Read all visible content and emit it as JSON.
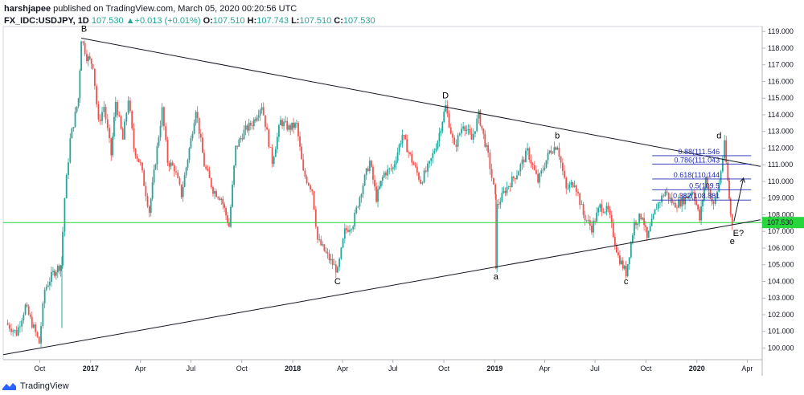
{
  "header": {
    "user": "harshjapee",
    "published": "published on TradingView.com, March 05, 2020 00:20:56 UTC",
    "symbol": "FX_IDC:USDJPY, 1D",
    "price": "107.530",
    "change": "+0.013 (+0.01%)",
    "o_label": "O:",
    "o_value": "107.510",
    "h_label": "H:",
    "h_value": "107.743",
    "l_label": "L:",
    "l_value": "107.510",
    "c_label": "C:",
    "c_value": "107.530"
  },
  "footer": {
    "brand": "TradingView",
    "logo_icon": "tradingview-logo-icon"
  },
  "colors": {
    "up": "#26a69a",
    "down": "#ef5350",
    "trendline": "#131722",
    "fib": "#1f2bb5",
    "price_line": "#26d63c",
    "last_price_bg": "#26d63c"
  },
  "chart_data": {
    "type": "candlestick",
    "ylim": [
      99.3,
      119.3
    ],
    "y_ticks": [
      "100.000",
      "101.000",
      "102.000",
      "103.000",
      "104.000",
      "105.000",
      "106.000",
      "107.000",
      "108.000",
      "109.000",
      "110.000",
      "111.000",
      "112.000",
      "113.000",
      "114.000",
      "115.000",
      "116.000",
      "117.000",
      "118.000",
      "119.000"
    ],
    "x_ticks": [
      {
        "label": "Oct",
        "date": "2016-10-01",
        "bold": false
      },
      {
        "label": "2017",
        "date": "2017-01-01",
        "bold": true
      },
      {
        "label": "Apr",
        "date": "2017-04-01",
        "bold": false
      },
      {
        "label": "Jul",
        "date": "2017-07-01",
        "bold": false
      },
      {
        "label": "Oct",
        "date": "2017-10-01",
        "bold": false
      },
      {
        "label": "2018",
        "date": "2018-01-01",
        "bold": true
      },
      {
        "label": "Apr",
        "date": "2018-04-01",
        "bold": false
      },
      {
        "label": "Jul",
        "date": "2018-07-01",
        "bold": false
      },
      {
        "label": "Oct",
        "date": "2018-10-01",
        "bold": false
      },
      {
        "label": "2019",
        "date": "2019-01-01",
        "bold": true
      },
      {
        "label": "Apr",
        "date": "2019-04-01",
        "bold": false
      },
      {
        "label": "Jul",
        "date": "2019-07-01",
        "bold": false
      },
      {
        "label": "Oct",
        "date": "2019-10-01",
        "bold": false
      },
      {
        "label": "2020",
        "date": "2020-01-01",
        "bold": true
      },
      {
        "label": "Apr",
        "date": "2020-04-01",
        "bold": false
      }
    ],
    "price_path": [
      [
        "2016-08-01",
        101.5
      ],
      [
        "2016-08-20",
        100.9
      ],
      [
        "2016-09-05",
        102.5
      ],
      [
        "2016-09-20",
        101.2
      ],
      [
        "2016-09-30",
        100.3
      ],
      [
        "2016-10-10",
        103.5
      ],
      [
        "2016-10-25",
        104.5
      ],
      [
        "2016-11-08",
        105.0
      ],
      [
        "2016-11-15",
        109.0
      ],
      [
        "2016-11-25",
        112.5
      ],
      [
        "2016-12-10",
        115.0
      ],
      [
        "2016-12-15",
        118.6
      ],
      [
        "2016-12-25",
        117.5
      ],
      [
        "2017-01-05",
        117.0
      ],
      [
        "2017-01-15",
        113.5
      ],
      [
        "2017-01-25",
        114.5
      ],
      [
        "2017-02-07",
        111.6
      ],
      [
        "2017-02-15",
        114.8
      ],
      [
        "2017-02-28",
        112.5
      ],
      [
        "2017-03-10",
        115.0
      ],
      [
        "2017-03-20",
        112.0
      ],
      [
        "2017-04-01",
        111.0
      ],
      [
        "2017-04-17",
        108.2
      ],
      [
        "2017-05-01",
        112.0
      ],
      [
        "2017-05-10",
        114.3
      ],
      [
        "2017-05-20",
        111.2
      ],
      [
        "2017-06-01",
        110.8
      ],
      [
        "2017-06-14",
        109.2
      ],
      [
        "2017-07-01",
        112.5
      ],
      [
        "2017-07-10",
        114.4
      ],
      [
        "2017-07-25",
        111.0
      ],
      [
        "2017-08-10",
        109.5
      ],
      [
        "2017-08-25",
        109.0
      ],
      [
        "2017-09-08",
        107.3
      ],
      [
        "2017-09-20",
        112.0
      ],
      [
        "2017-10-05",
        113.0
      ],
      [
        "2017-10-20",
        113.5
      ],
      [
        "2017-11-06",
        114.6
      ],
      [
        "2017-11-25",
        111.2
      ],
      [
        "2017-12-10",
        113.6
      ],
      [
        "2017-12-25",
        113.2
      ],
      [
        "2018-01-08",
        113.4
      ],
      [
        "2018-01-20",
        110.5
      ],
      [
        "2018-02-05",
        109.5
      ],
      [
        "2018-02-15",
        106.5
      ],
      [
        "2018-03-05",
        105.5
      ],
      [
        "2018-03-23",
        104.6
      ],
      [
        "2018-04-05",
        107.0
      ],
      [
        "2018-04-20",
        107.5
      ],
      [
        "2018-05-05",
        109.5
      ],
      [
        "2018-05-20",
        111.2
      ],
      [
        "2018-06-01",
        109.0
      ],
      [
        "2018-06-15",
        110.5
      ],
      [
        "2018-07-01",
        110.8
      ],
      [
        "2018-07-18",
        112.8
      ],
      [
        "2018-08-01",
        111.5
      ],
      [
        "2018-08-20",
        110.0
      ],
      [
        "2018-09-05",
        111.0
      ],
      [
        "2018-09-20",
        112.5
      ],
      [
        "2018-10-04",
        114.5
      ],
      [
        "2018-10-20",
        112.0
      ],
      [
        "2018-11-05",
        113.5
      ],
      [
        "2018-11-20",
        112.5
      ],
      [
        "2018-12-03",
        114.0
      ],
      [
        "2018-12-20",
        111.5
      ],
      [
        "2019-01-02",
        109.0
      ],
      [
        "2019-01-03",
        105.0
      ],
      [
        "2019-01-05",
        108.5
      ],
      [
        "2019-01-20",
        109.5
      ],
      [
        "2019-02-10",
        110.5
      ],
      [
        "2019-03-01",
        111.8
      ],
      [
        "2019-03-20",
        110.0
      ],
      [
        "2019-04-10",
        111.8
      ],
      [
        "2019-04-24",
        112.2
      ],
      [
        "2019-05-10",
        109.5
      ],
      [
        "2019-05-25",
        110.0
      ],
      [
        "2019-06-10",
        108.0
      ],
      [
        "2019-06-25",
        107.2
      ],
      [
        "2019-07-10",
        108.5
      ],
      [
        "2019-07-25",
        108.2
      ],
      [
        "2019-08-12",
        105.5
      ],
      [
        "2019-08-26",
        104.5
      ],
      [
        "2019-09-10",
        107.5
      ],
      [
        "2019-09-25",
        108.0
      ],
      [
        "2019-10-03",
        106.5
      ],
      [
        "2019-10-20",
        108.5
      ],
      [
        "2019-11-05",
        109.4
      ],
      [
        "2019-11-20",
        108.6
      ],
      [
        "2019-12-05",
        108.8
      ],
      [
        "2019-12-25",
        109.5
      ],
      [
        "2020-01-06",
        107.7
      ],
      [
        "2020-01-17",
        110.2
      ],
      [
        "2020-01-31",
        108.5
      ],
      [
        "2020-02-10",
        109.9
      ],
      [
        "2020-02-20",
        112.2
      ],
      [
        "2020-02-26",
        110.0
      ],
      [
        "2020-03-02",
        108.0
      ],
      [
        "2020-03-05",
        107.5
      ]
    ],
    "last_price": {
      "value": 107.53,
      "label": "107.530"
    },
    "trendlines": [
      {
        "from": [
          "2016-12-15",
          118.6
        ],
        "to": [
          "2020-04-25",
          110.9
        ]
      },
      {
        "from": [
          "2016-07-27",
          99.6
        ],
        "to": [
          "2020-04-25",
          107.7
        ]
      }
    ],
    "arrow": {
      "from": [
        "2020-03-08",
        107.6
      ],
      "to": [
        "2020-03-25",
        110.2
      ]
    },
    "fib_levels": [
      {
        "label": "0.88(111.546",
        "value": 111.546
      },
      {
        "label": "0.786(111.043",
        "value": 111.043
      },
      {
        "label": "0.618(110.144",
        "value": 110.144
      },
      {
        "label": "0.5(109.5",
        "value": 109.5
      },
      {
        "label": "0.382(108.881",
        "value": 108.881
      }
    ],
    "fib_range": [
      "2020-02-20",
      "2020-04-08"
    ],
    "wave_labels": [
      {
        "text": "B",
        "date": "2016-12-20",
        "value": 118.6,
        "pos": "above"
      },
      {
        "text": "D",
        "date": "2018-10-04",
        "value": 114.6,
        "pos": "above"
      },
      {
        "text": "b",
        "date": "2019-04-24",
        "value": 112.2,
        "pos": "above"
      },
      {
        "text": "d",
        "date": "2020-02-10",
        "value": 112.2,
        "pos": "above"
      },
      {
        "text": "C",
        "date": "2018-03-23",
        "value": 104.6,
        "pos": "below"
      },
      {
        "text": "a",
        "date": "2019-01-03",
        "value": 104.9,
        "pos": "below"
      },
      {
        "text": "c",
        "date": "2019-08-26",
        "value": 104.6,
        "pos": "below"
      },
      {
        "text": "e",
        "date": "2020-03-05",
        "value": 107.0,
        "pos": "below"
      },
      {
        "text": "E?",
        "date": "2020-03-16",
        "value": 107.5,
        "pos": "below"
      }
    ]
  }
}
